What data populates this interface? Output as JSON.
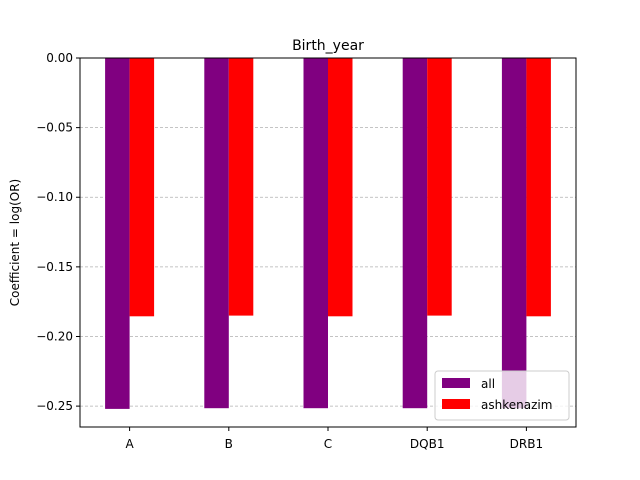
{
  "chart_data": {
    "type": "bar",
    "title": "Birth_year",
    "xlabel": "",
    "ylabel": "Coefficient = log(OR)",
    "categories": [
      "A",
      "B",
      "C",
      "DQB1",
      "DRB1"
    ],
    "series": [
      {
        "name": "all",
        "color": "#800080",
        "values": [
          -0.252,
          -0.2515,
          -0.2515,
          -0.2515,
          -0.2515
        ]
      },
      {
        "name": "ashkenazim",
        "color": "#ff0000",
        "values": [
          -0.1855,
          -0.185,
          -0.1855,
          -0.185,
          -0.1855
        ]
      }
    ],
    "ylim": [
      -0.265,
      0.0
    ],
    "yticks": [
      0.0,
      -0.05,
      -0.1,
      -0.15,
      -0.2,
      -0.25
    ],
    "ytick_labels": [
      "0.00",
      "−0.05",
      "−0.10",
      "−0.15",
      "−0.20",
      "−0.25"
    ],
    "grid": {
      "y": true,
      "style": "dashed",
      "color": "#b0b0b0"
    },
    "legend_position": "bottom-right"
  }
}
